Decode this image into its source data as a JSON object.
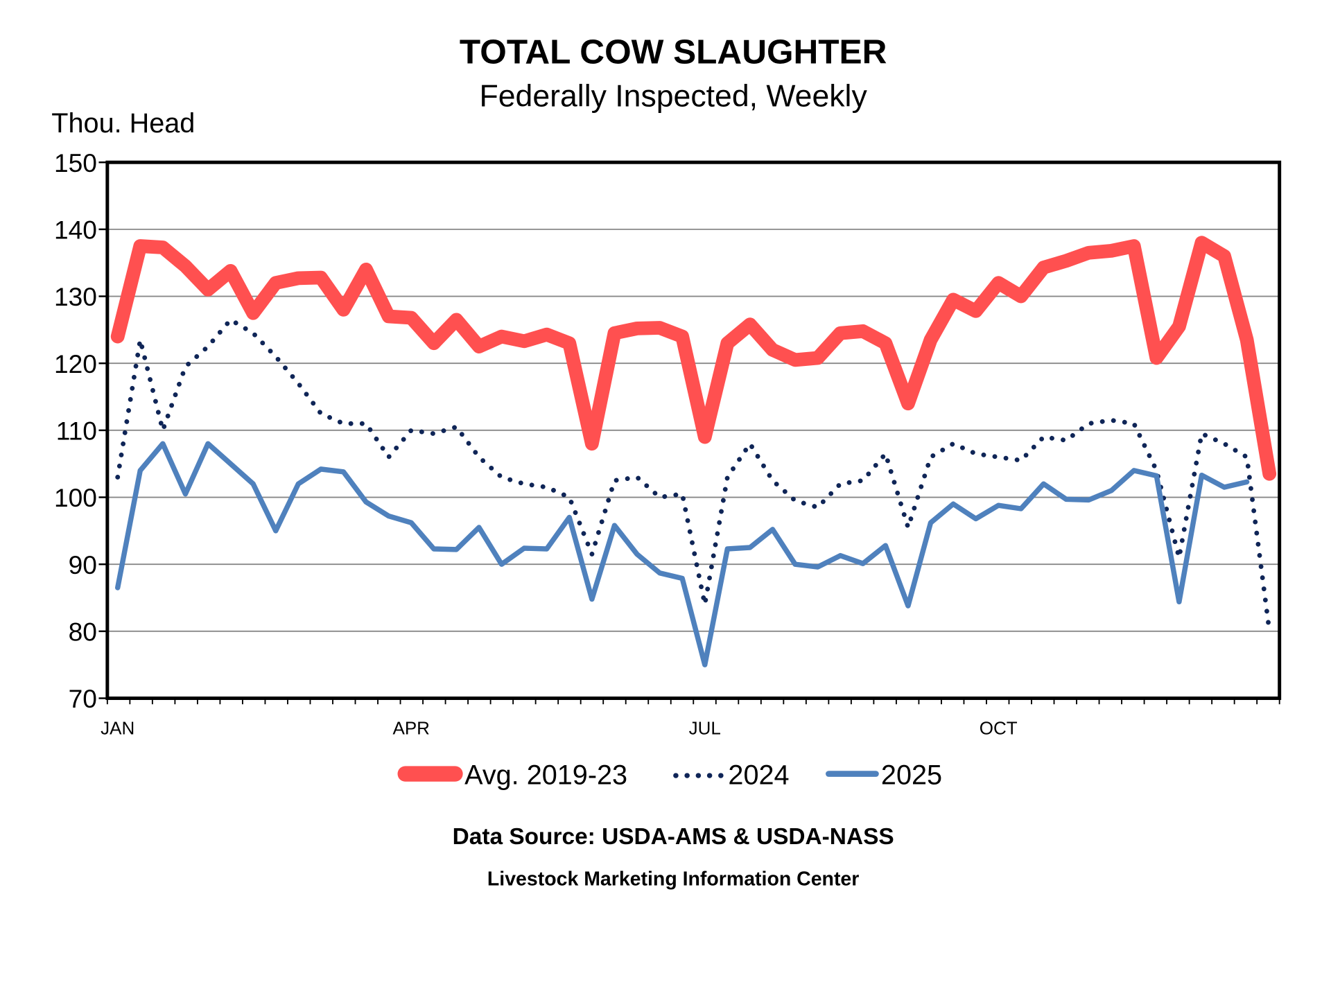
{
  "chart_data": {
    "type": "line",
    "title": "TOTAL COW SLAUGHTER",
    "subtitle": "Federally Inspected, Weekly",
    "ylabel": "Thou. Head",
    "xlabel": "",
    "ylim": [
      70,
      150
    ],
    "yticks": [
      "70",
      "80",
      "90",
      "100",
      "110",
      "120",
      "130",
      "140",
      "150"
    ],
    "x_unit": "week",
    "x_tick_labels": [
      {
        "label": "JAN",
        "week": 1
      },
      {
        "label": "APR",
        "week": 14
      },
      {
        "label": "JUL",
        "week": 27
      },
      {
        "label": "OCT",
        "week": 40
      }
    ],
    "weeks_total": 52,
    "grid": true,
    "legend_position": "bottom",
    "series": [
      {
        "name": "Avg. 2019-23",
        "color": "#ff5050",
        "style": "solid-thick",
        "values": [
          124,
          137.5,
          137.3,
          134.5,
          131,
          133.8,
          127.5,
          132,
          132.7,
          132.8,
          128,
          134,
          127,
          126.8,
          123,
          126.5,
          122.5,
          124,
          123.3,
          124.3,
          123,
          108,
          124.5,
          125.2,
          125.3,
          124,
          109,
          123,
          125.8,
          122,
          120.5,
          120.8,
          124.5,
          124.8,
          123,
          114,
          123.5,
          129.5,
          127.8,
          132,
          130,
          134.3,
          135.3,
          136.5,
          136.8,
          137.5,
          120.8,
          125.5,
          138,
          136,
          123.5,
          103.5
        ]
      },
      {
        "name": "2024",
        "color": "#0f2557",
        "style": "dotted",
        "values": [
          103,
          123.5,
          110,
          119.5,
          122.5,
          126.5,
          124.5,
          121,
          117,
          112.5,
          111,
          111,
          106,
          110,
          109.5,
          110.5,
          106,
          103,
          102,
          101.5,
          100,
          91.5,
          102.5,
          103,
          100,
          100.5,
          84,
          103,
          108,
          102.5,
          99.5,
          98.5,
          102,
          102.5,
          106.5,
          95.5,
          106,
          108,
          106.5,
          106,
          105.5,
          109,
          108.5,
          111,
          111.5,
          111,
          104,
          91,
          109.5,
          108,
          106,
          80
        ]
      },
      {
        "name": "2025",
        "color": "#4f81bd",
        "style": "solid",
        "values": [
          86.5,
          104,
          108,
          100.5,
          108,
          105,
          102,
          95,
          102,
          104.2,
          103.8,
          99.3,
          97.2,
          96.2,
          92.3,
          92.2,
          95.5,
          90,
          92.4,
          92.3,
          97,
          84.8,
          95.8,
          91.5,
          88.7,
          87.9,
          75,
          92.3,
          92.5,
          95.2,
          90,
          89.6,
          91.3,
          90.1,
          92.8,
          83.8,
          96.2,
          99,
          96.8,
          98.8,
          98.3,
          102,
          99.7,
          99.6,
          101,
          104,
          103.2,
          84.4,
          103.3,
          101.5,
          102.3
        ]
      }
    ],
    "annotations": [
      "Data Source:  USDA-AMS & USDA-NASS",
      "Livestock Marketing Information Center"
    ]
  }
}
